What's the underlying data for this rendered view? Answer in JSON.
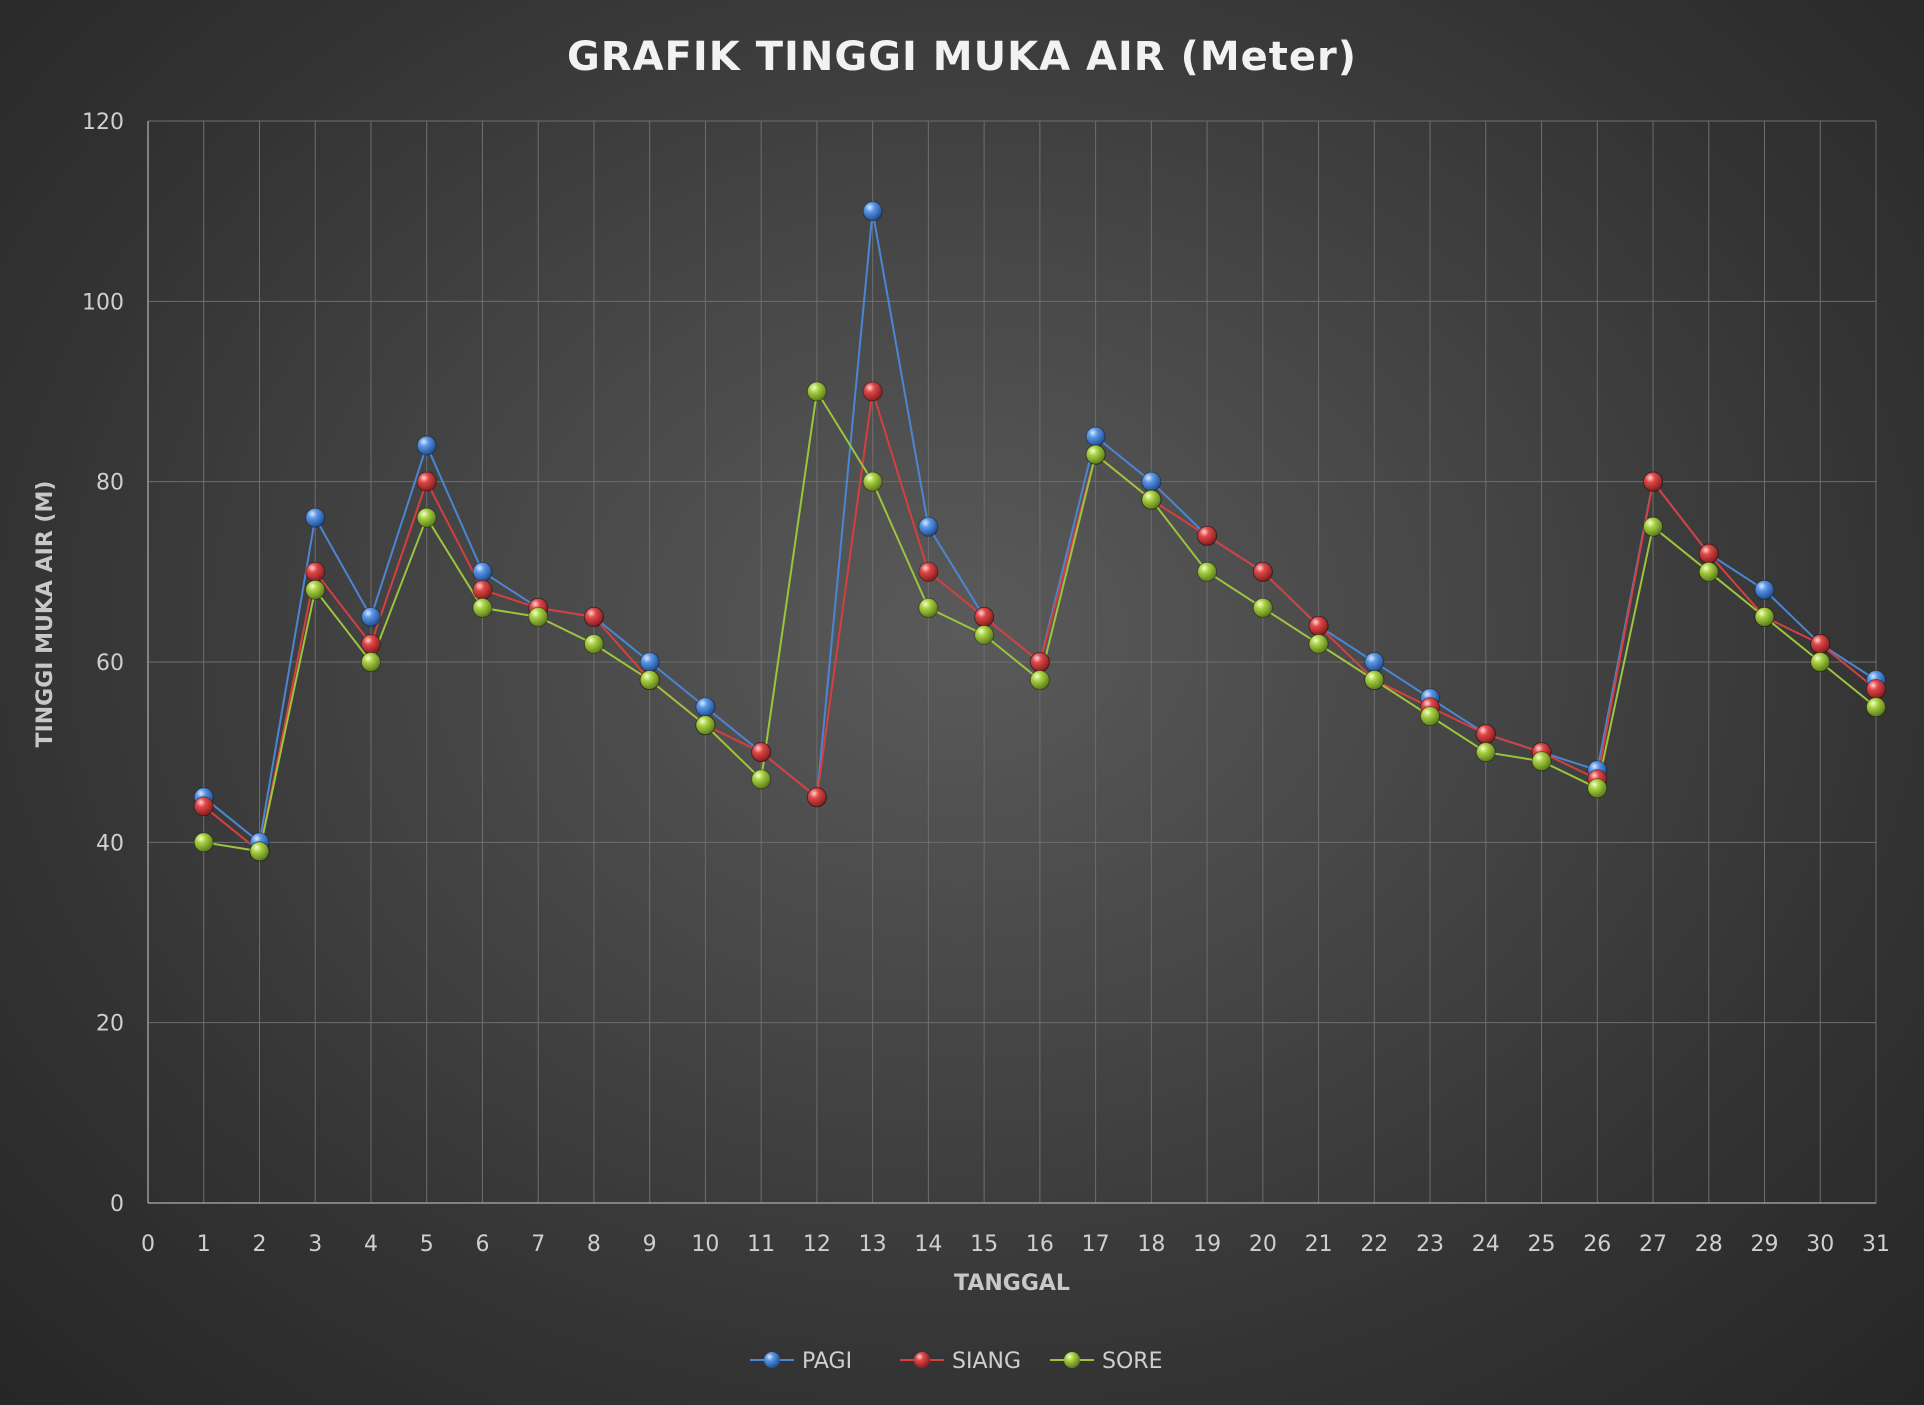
{
  "chart_data": {
    "type": "line",
    "title": "GRAFIK TINGGI MUKA AIR (Meter)",
    "xlabel": "TANGGAL",
    "ylabel": "TINGGI MUKA AIR (M)",
    "xlim": [
      0,
      31
    ],
    "ylim": [
      0,
      120
    ],
    "xticks": [
      0,
      1,
      2,
      3,
      4,
      5,
      6,
      7,
      8,
      9,
      10,
      11,
      12,
      13,
      14,
      15,
      16,
      17,
      18,
      19,
      20,
      21,
      22,
      23,
      24,
      25,
      26,
      27,
      28,
      29,
      30,
      31
    ],
    "yticks": [
      0,
      20,
      40,
      60,
      80,
      100,
      120
    ],
    "grid": true,
    "legend_position": "bottom",
    "series": [
      {
        "name": "PAGI",
        "color": "#4a86d4",
        "x": [
          1,
          2,
          3,
          4,
          5,
          6,
          7,
          8,
          9,
          10,
          11,
          12,
          13,
          14,
          15,
          16,
          17,
          18,
          19,
          20,
          21,
          22,
          23,
          24,
          25,
          26,
          27,
          28,
          29,
          30,
          31
        ],
        "values": [
          45,
          40,
          76,
          65,
          84,
          70,
          66,
          65,
          60,
          55,
          50,
          45,
          110,
          75,
          65,
          60,
          85,
          80,
          74,
          70,
          64,
          60,
          56,
          52,
          50,
          48,
          80,
          72,
          68,
          62,
          58
        ]
      },
      {
        "name": "SIANG",
        "color": "#d43f3f",
        "x": [
          1,
          2,
          3,
          4,
          5,
          6,
          7,
          8,
          9,
          10,
          11,
          12,
          13,
          14,
          15,
          16,
          17,
          18,
          19,
          20,
          21,
          22,
          23,
          24,
          25,
          26,
          27,
          28,
          29,
          30,
          31
        ],
        "values": [
          44,
          39,
          70,
          62,
          80,
          68,
          66,
          65,
          58,
          53,
          50,
          45,
          90,
          70,
          65,
          60,
          83,
          78,
          74,
          70,
          64,
          58,
          55,
          52,
          50,
          47,
          80,
          72,
          65,
          62,
          57
        ]
      },
      {
        "name": "SORE",
        "color": "#9cc43c",
        "x": [
          1,
          2,
          3,
          4,
          5,
          6,
          7,
          8,
          9,
          10,
          11,
          12,
          13,
          14,
          15,
          16,
          17,
          18,
          19,
          20,
          21,
          22,
          23,
          24,
          25,
          26,
          27,
          28,
          29,
          30,
          31
        ],
        "values": [
          40,
          39,
          68,
          60,
          76,
          66,
          65,
          62,
          58,
          53,
          47,
          90,
          80,
          66,
          63,
          58,
          83,
          78,
          70,
          66,
          62,
          58,
          54,
          50,
          49,
          46,
          75,
          70,
          65,
          60,
          55
        ]
      }
    ]
  }
}
